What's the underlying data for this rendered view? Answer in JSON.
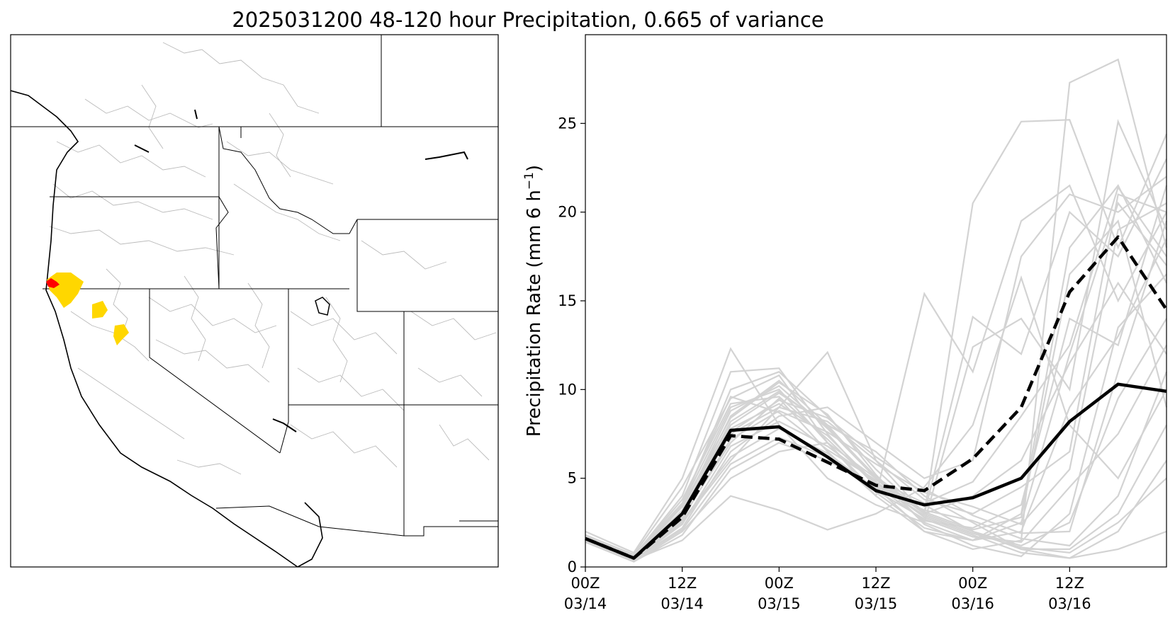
{
  "title": "2025031200 48-120 hour Precipitation, 0.665 of variance",
  "map": {
    "highlight_colors": {
      "major": "#ffd700",
      "peak": "#ff0000"
    },
    "border_color": "#000000",
    "basin_color": "#bbbbbb"
  },
  "chart_data": {
    "type": "line",
    "title": "2025031200 48-120 hour Precipitation, 0.665 of variance",
    "xlabel": "",
    "ylabel_main": "Precipitation Rate (mm 6 h",
    "ylabel_sup": "−1",
    "ylabel_end": ")",
    "x": [
      0,
      1,
      2,
      3,
      4,
      5,
      6,
      7,
      8,
      9,
      10,
      11,
      12
    ],
    "xlim": [
      0,
      12
    ],
    "ylim": [
      0,
      30
    ],
    "xticks": [
      {
        "x": 0,
        "line1": "00Z",
        "line2": "03/14"
      },
      {
        "x": 2,
        "line1": "12Z",
        "line2": "03/14"
      },
      {
        "x": 4,
        "line1": "00Z",
        "line2": "03/15"
      },
      {
        "x": 6,
        "line1": "12Z",
        "line2": "03/15"
      },
      {
        "x": 8,
        "line1": "00Z",
        "line2": "03/16"
      },
      {
        "x": 10,
        "line1": "12Z",
        "line2": "03/16"
      }
    ],
    "yticks": [
      0,
      5,
      10,
      15,
      20,
      25
    ],
    "series": [
      {
        "style": "solid",
        "color": "#000000",
        "values": [
          1.6,
          0.5,
          3.0,
          7.7,
          7.9,
          6.2,
          4.3,
          3.5,
          3.9,
          5.0,
          8.2,
          10.3,
          9.9
        ]
      },
      {
        "style": "dashed",
        "color": "#000000",
        "values": [
          1.6,
          0.5,
          2.8,
          7.4,
          7.2,
          5.9,
          4.6,
          4.3,
          6.1,
          9.0,
          15.5,
          18.6,
          14.5
        ]
      }
    ],
    "ensemble_color": "#d3d3d3",
    "ensemble": [
      [
        1.6,
        0.5,
        3.0,
        8.5,
        10.5,
        8.0,
        5.0,
        2.5,
        1.5,
        2.5,
        12.0,
        20.5,
        17.0
      ],
      [
        1.8,
        0.6,
        4.0,
        11.0,
        11.2,
        7.5,
        4.5,
        2.0,
        1.0,
        1.5,
        27.3,
        28.6,
        18.0
      ],
      [
        1.5,
        0.4,
        2.5,
        6.0,
        9.0,
        12.1,
        6.0,
        3.0,
        20.5,
        25.1,
        25.2,
        18.0,
        24.4
      ],
      [
        1.7,
        0.5,
        3.5,
        9.0,
        10.0,
        7.0,
        4.0,
        15.4,
        11.0,
        19.5,
        21.5,
        15.0,
        20.0
      ],
      [
        1.4,
        0.3,
        2.0,
        5.0,
        6.5,
        7.0,
        5.0,
        3.0,
        2.0,
        1.0,
        0.5,
        2.0,
        6.0
      ],
      [
        2.0,
        0.8,
        5.0,
        12.3,
        8.0,
        5.0,
        3.5,
        2.5,
        12.4,
        14.0,
        10.0,
        25.1,
        19.0
      ],
      [
        1.6,
        0.5,
        2.8,
        7.0,
        9.5,
        6.5,
        4.0,
        2.0,
        1.5,
        3.0,
        18.0,
        21.5,
        16.0
      ],
      [
        1.5,
        0.4,
        1.5,
        4.0,
        3.2,
        2.1,
        3.0,
        4.5,
        8.0,
        16.3,
        8.0,
        5.0,
        10.0
      ],
      [
        1.7,
        0.6,
        3.5,
        10.0,
        11.0,
        8.5,
        5.5,
        3.0,
        14.1,
        12.0,
        20.0,
        17.5,
        23.0
      ],
      [
        1.6,
        0.5,
        3.0,
        8.0,
        9.8,
        8.0,
        6.5,
        4.0,
        2.5,
        1.0,
        1.0,
        3.0,
        8.0
      ],
      [
        1.5,
        0.4,
        2.2,
        6.5,
        8.5,
        9.0,
        7.0,
        5.0,
        6.0,
        17.5,
        21.0,
        20.0,
        22.0
      ],
      [
        1.8,
        0.7,
        4.5,
        9.5,
        10.8,
        7.0,
        4.2,
        2.2,
        1.5,
        2.0,
        9.0,
        13.0,
        18.5
      ],
      [
        1.4,
        0.3,
        1.8,
        5.5,
        7.0,
        6.0,
        4.5,
        3.5,
        2.0,
        1.2,
        2.5,
        9.5,
        14.0
      ],
      [
        1.6,
        0.5,
        3.2,
        8.8,
        10.2,
        7.8,
        5.0,
        3.0,
        4.0,
        6.0,
        11.5,
        16.0,
        12.0
      ],
      [
        1.7,
        0.5,
        2.9,
        7.5,
        9.0,
        8.2,
        6.0,
        3.8,
        3.0,
        4.5,
        6.5,
        21.0,
        20.0
      ],
      [
        1.5,
        0.4,
        2.4,
        6.8,
        8.2,
        6.8,
        4.8,
        2.8,
        1.8,
        0.8,
        0.5,
        1.0,
        2.0
      ],
      [
        1.6,
        0.6,
        3.8,
        9.2,
        9.6,
        7.2,
        4.6,
        2.6,
        2.2,
        3.5,
        14.0,
        12.5,
        21.5
      ],
      [
        1.5,
        0.5,
        2.6,
        6.2,
        7.8,
        6.4,
        4.4,
        3.2,
        2.6,
        1.6,
        1.2,
        4.0,
        11.0
      ],
      [
        1.7,
        0.5,
        3.4,
        8.4,
        10.4,
        8.6,
        5.2,
        2.4,
        1.2,
        0.6,
        3.0,
        13.5,
        16.5
      ],
      [
        1.6,
        0.4,
        2.7,
        7.2,
        8.8,
        7.6,
        5.8,
        4.2,
        3.4,
        2.4,
        5.5,
        19.0,
        20.5
      ],
      [
        1.5,
        0.5,
        3.1,
        7.8,
        9.2,
        7.4,
        4.7,
        2.9,
        1.9,
        1.1,
        0.8,
        2.5,
        5.0
      ],
      [
        1.6,
        0.5,
        3.0,
        8.2,
        9.9,
        7.9,
        5.1,
        3.1,
        2.1,
        2.8,
        16.5,
        19.5,
        9.0
      ],
      [
        1.7,
        0.6,
        3.6,
        9.6,
        8.7,
        6.6,
        4.9,
        3.6,
        4.8,
        8.5,
        12.5,
        21.4,
        17.5
      ],
      [
        1.4,
        0.4,
        2.1,
        5.8,
        7.3,
        6.2,
        4.3,
        2.7,
        1.7,
        1.4,
        4.5,
        7.5,
        12.5
      ],
      [
        1.6,
        0.5,
        2.9,
        7.6,
        9.4,
        8.4,
        6.2,
        4.4,
        2.9,
        1.9,
        2.0,
        11.0,
        19.5
      ]
    ]
  }
}
